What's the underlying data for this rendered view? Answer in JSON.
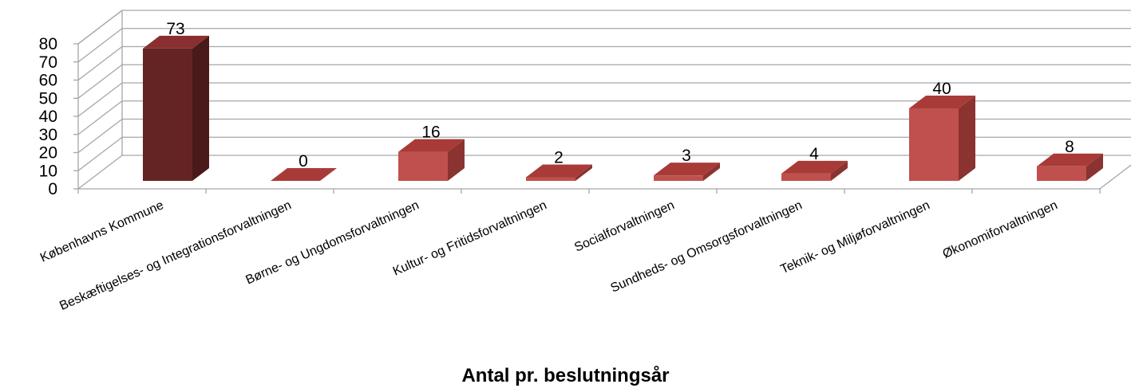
{
  "chart_data": {
    "type": "bar",
    "style": "3d-column",
    "categories": [
      "Københavns Kommune",
      "Beskæftigelses- og Integrationsforvaltningen",
      "Børne- og Ungdomsforvaltningen",
      "Kultur- og Fritidsforvaltningen",
      "Socialforvaltningen",
      "Sundheds- og Omsorgsforvaltningen",
      "Teknik- og Miljøforvaltningen",
      "Økonomiforvaltningen"
    ],
    "values": [
      73,
      0,
      16,
      2,
      3,
      4,
      40,
      8
    ],
    "data_labels": [
      "73",
      "0",
      "16",
      "2",
      "3",
      "4",
      "40",
      "8"
    ],
    "title": "",
    "xlabel": "Antal pr. beslutningsår",
    "ylabel": "",
    "ylim": [
      0,
      80
    ],
    "yticks": [
      0,
      10,
      20,
      30,
      40,
      50,
      60,
      70,
      80
    ],
    "grid": true,
    "legend": "none",
    "colors": {
      "highlight_front": "#652424",
      "highlight_top": "#8a2f2f",
      "highlight_side": "#4a1919",
      "bar_front": "#c0504d",
      "bar_top": "#a83b38",
      "bar_side": "#8a3331",
      "grid": "#a6a6a6"
    }
  }
}
